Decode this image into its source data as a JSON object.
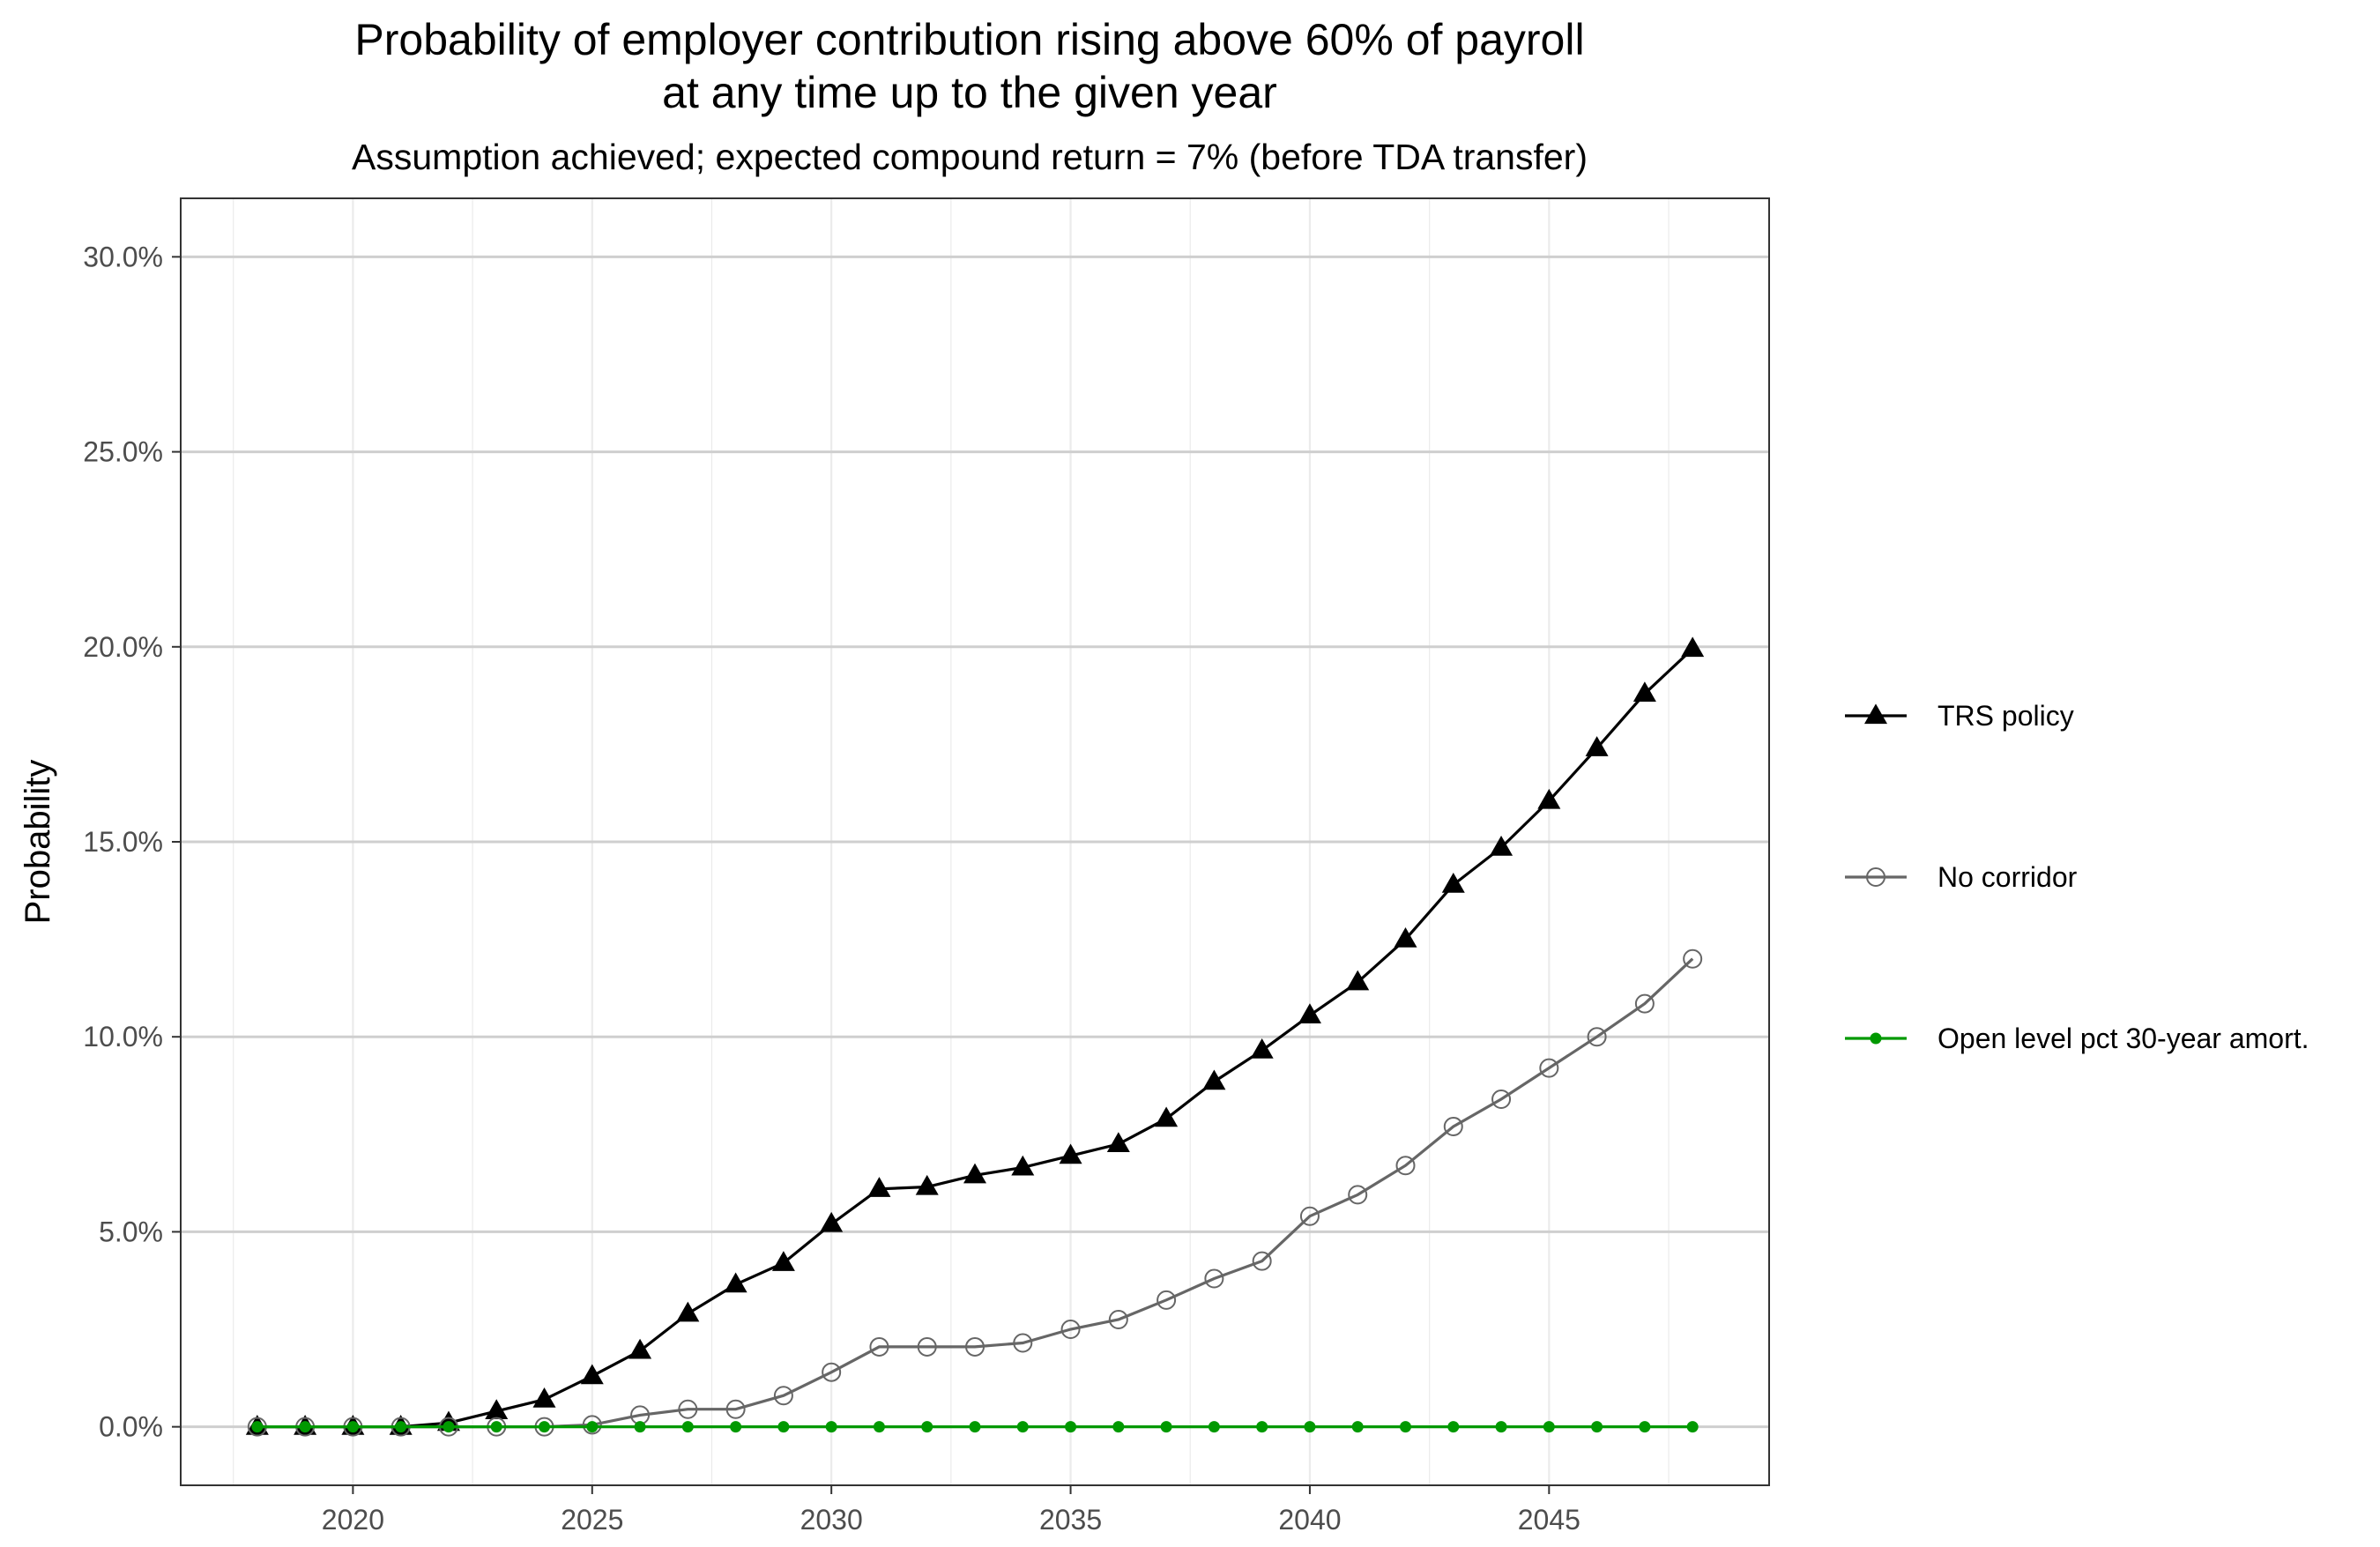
{
  "chart_data": {
    "type": "line",
    "title": [
      "Probability of employer contribution rising above 60% of payroll",
      "at any time up to the given year"
    ],
    "subtitle": "Assumption achieved; expected compound return = 7% (before TDA transfer)",
    "xlabel": "",
    "ylabel": "Probability",
    "xlim": [
      2016.4,
      2049.6
    ],
    "ylim": [
      -1.5,
      31.5
    ],
    "x_ticks": [
      2020,
      2025,
      2030,
      2035,
      2040,
      2045
    ],
    "y_ticks": [
      0,
      5,
      10,
      15,
      20,
      25,
      30
    ],
    "y_tick_labels": [
      "0.0%",
      "5.0%",
      "10.0%",
      "15.0%",
      "20.0%",
      "25.0%",
      "30.0%"
    ],
    "grid": true,
    "legend_position": "right",
    "x": [
      2018,
      2019,
      2020,
      2021,
      2022,
      2023,
      2024,
      2025,
      2026,
      2027,
      2028,
      2029,
      2030,
      2031,
      2032,
      2033,
      2034,
      2035,
      2036,
      2037,
      2038,
      2039,
      2040,
      2041,
      2042,
      2043,
      2044,
      2045,
      2046,
      2047,
      2048
    ],
    "series": [
      {
        "name": "TRS policy",
        "color": "#000000",
        "marker": "triangle",
        "values": [
          0,
          0,
          0,
          0,
          0.1,
          0.4,
          0.7,
          1.3,
          1.95,
          2.9,
          3.65,
          4.2,
          5.2,
          6.1,
          6.15,
          6.45,
          6.65,
          6.95,
          7.25,
          7.9,
          8.85,
          9.65,
          10.55,
          11.4,
          12.5,
          13.9,
          14.85,
          16.05,
          17.4,
          18.8,
          19.95
        ]
      },
      {
        "name": "No corridor",
        "color": "#666666",
        "marker": "open-circle",
        "values": [
          0,
          0,
          0,
          0,
          0,
          0,
          0,
          0.05,
          0.3,
          0.45,
          0.45,
          0.8,
          1.4,
          2.05,
          2.05,
          2.05,
          2.15,
          2.5,
          2.75,
          3.25,
          3.8,
          4.25,
          5.4,
          5.95,
          6.7,
          7.7,
          8.4,
          9.2,
          10.0,
          10.85,
          12.0
        ]
      },
      {
        "name": "Open level pct 30-year amort.",
        "color": "#009900",
        "marker": "dot",
        "values": [
          0,
          0,
          0,
          0,
          0,
          0,
          0,
          0,
          0,
          0,
          0,
          0,
          0,
          0,
          0,
          0,
          0,
          0,
          0,
          0,
          0,
          0,
          0,
          0,
          0,
          0,
          0,
          0,
          0,
          0,
          0
        ]
      }
    ]
  }
}
